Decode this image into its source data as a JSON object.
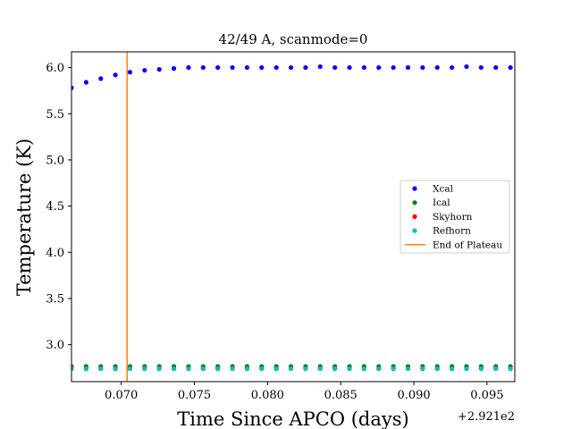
{
  "chart_data": {
    "type": "scatter",
    "title": "42/49 A, scanmode=0",
    "xlabel": "Time Since APCO (days)",
    "ylabel": "Temperature (K)",
    "x_offset_label": "+2.921e2",
    "xlim": [
      0.0666,
      0.0969
    ],
    "ylim": [
      2.6,
      6.17
    ],
    "xticks": [
      0.07,
      0.075,
      0.08,
      0.085,
      0.09,
      0.095
    ],
    "xtick_labels": [
      "0.070",
      "0.075",
      "0.080",
      "0.085",
      "0.090",
      "0.095"
    ],
    "yticks": [
      3.0,
      3.5,
      4.0,
      4.5,
      5.0,
      5.5,
      6.0
    ],
    "ytick_labels": [
      "3.0",
      "3.5",
      "4.0",
      "4.5",
      "5.0",
      "5.5",
      "6.0"
    ],
    "grid": false,
    "legend_placement": "center-right",
    "x": [
      0.0666,
      0.0676,
      0.0686,
      0.0696,
      0.0706,
      0.0716,
      0.0726,
      0.0736,
      0.0746,
      0.0756,
      0.0766,
      0.0776,
      0.0786,
      0.0796,
      0.0806,
      0.0816,
      0.0826,
      0.0836,
      0.0846,
      0.0856,
      0.0866,
      0.0876,
      0.0886,
      0.0896,
      0.0906,
      0.0916,
      0.0926,
      0.0936,
      0.0946,
      0.0956,
      0.0966
    ],
    "series": [
      {
        "name": "Xcal",
        "color": "#0000ff",
        "marker": "dot",
        "values": [
          5.78,
          5.84,
          5.88,
          5.92,
          5.95,
          5.97,
          5.98,
          5.99,
          6.0,
          6.0,
          6.0,
          6.0,
          6.0,
          6.0,
          6.0,
          6.0,
          6.0,
          6.01,
          6.0,
          6.0,
          6.0,
          6.0,
          6.0,
          6.0,
          6.0,
          6.0,
          6.0,
          6.01,
          6.0,
          6.0,
          6.0
        ]
      },
      {
        "name": "Ical",
        "color": "#008000",
        "marker": "dot",
        "values": [
          2.765,
          2.765,
          2.765,
          2.765,
          2.765,
          2.765,
          2.765,
          2.765,
          2.765,
          2.765,
          2.765,
          2.765,
          2.765,
          2.765,
          2.765,
          2.765,
          2.765,
          2.765,
          2.765,
          2.765,
          2.765,
          2.765,
          2.765,
          2.765,
          2.765,
          2.765,
          2.765,
          2.765,
          2.765,
          2.765,
          2.765
        ]
      },
      {
        "name": "Skyhorn",
        "color": "#ff0000",
        "marker": "dot",
        "values": [
          2.74,
          2.74,
          2.74,
          2.74,
          2.74,
          2.74,
          2.74,
          2.74,
          2.74,
          2.74,
          2.74,
          2.74,
          2.74,
          2.74,
          2.74,
          2.74,
          2.74,
          2.74,
          2.74,
          2.74,
          2.74,
          2.74,
          2.74,
          2.74,
          2.74,
          2.74,
          2.74,
          2.74,
          2.74,
          2.74,
          2.74
        ]
      },
      {
        "name": "Refhorn",
        "color": "#00bfbf",
        "marker": "dot",
        "values": [
          2.74,
          2.74,
          2.74,
          2.74,
          2.74,
          2.74,
          2.74,
          2.74,
          2.74,
          2.74,
          2.74,
          2.74,
          2.74,
          2.74,
          2.74,
          2.74,
          2.74,
          2.74,
          2.74,
          2.74,
          2.74,
          2.74,
          2.74,
          2.74,
          2.74,
          2.74,
          2.74,
          2.74,
          2.74,
          2.74,
          2.74
        ]
      }
    ],
    "vline": {
      "name": "End of Plateau",
      "color": "#ff7f0e",
      "x": 0.0704
    }
  }
}
